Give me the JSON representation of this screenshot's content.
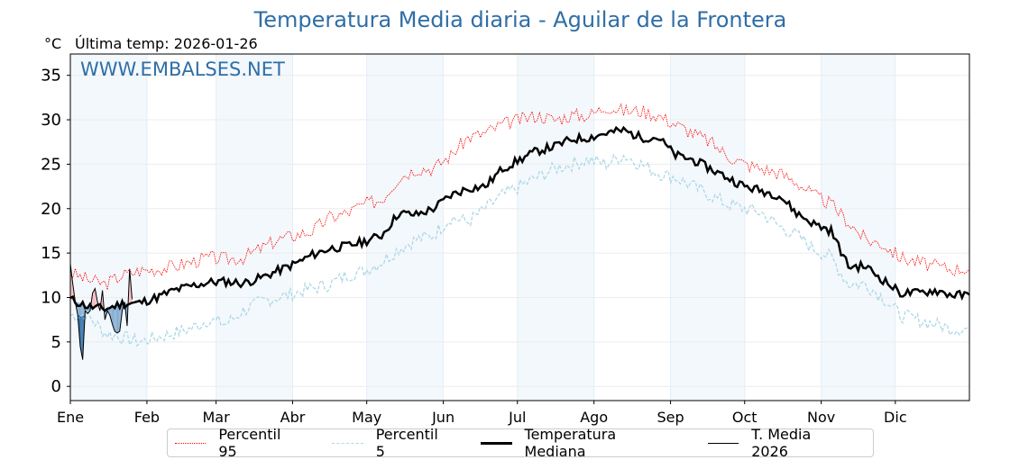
{
  "header": {
    "title": "Temperatura Media diaria - Aguilar de la Frontera",
    "unit": "°C",
    "last_temp": "Última temp: 2026-01-26",
    "watermark": "WWW.EMBALSES.NET"
  },
  "colors": {
    "title": "#2f6ea6",
    "p95": "#ff0000",
    "p5": "#add8e6",
    "median": "#000000",
    "current": "#000000",
    "above_fill": "#f4b8bf",
    "below_fill": "#7aa6cf",
    "below_p5_fill": "#2a6aa5",
    "band": "#f3f8fc"
  },
  "chart_data": {
    "type": "line",
    "title": "Temperatura Media diaria - Aguilar de la Frontera",
    "ylabel": "°C",
    "xlim": [
      0,
      364
    ],
    "ylim": [
      -1.6,
      37.4
    ],
    "yticks": [
      0,
      5,
      10,
      15,
      20,
      25,
      30,
      35
    ],
    "months": [
      {
        "label": "Ene",
        "day": 0
      },
      {
        "label": "Feb",
        "day": 31
      },
      {
        "label": "Mar",
        "day": 59
      },
      {
        "label": "Abr",
        "day": 90
      },
      {
        "label": "May",
        "day": 120
      },
      {
        "label": "Jun",
        "day": 151
      },
      {
        "label": "Jul",
        "day": 181
      },
      {
        "label": "Ago",
        "day": 212
      },
      {
        "label": "Sep",
        "day": 243
      },
      {
        "label": "Oct",
        "day": 273
      },
      {
        "label": "Nov",
        "day": 304
      },
      {
        "label": "Dic",
        "day": 334
      }
    ],
    "shaded_months": [
      0,
      2,
      4,
      6,
      8,
      10
    ],
    "x_step_days": 7,
    "series": [
      {
        "name": "Percentil 95",
        "style": "dotted",
        "values": [
          12.8,
          12.0,
          11.5,
          12.5,
          13.0,
          13.2,
          13.5,
          14.0,
          14.5,
          14.3,
          14.5,
          15.5,
          16.5,
          17.0,
          17.5,
          19.0,
          19.5,
          20.5,
          21.0,
          23.5,
          24.5,
          24.5,
          26.0,
          28.0,
          28.5,
          29.5,
          30.0,
          30.5,
          30.0,
          30.5,
          30.5,
          31.5,
          31.0,
          31.0,
          30.5,
          29.5,
          28.5,
          27.5,
          26.0,
          25.0,
          24.5,
          24.0,
          23.0,
          21.5,
          20.5,
          18.5,
          16.5,
          16.0,
          14.5,
          14.0,
          13.5,
          13.2,
          13.3
        ]
      },
      {
        "name": "Percentil 5",
        "style": "dashed",
        "values": [
          8.0,
          8.0,
          6.0,
          5.5,
          5.0,
          5.5,
          6.0,
          6.5,
          7.5,
          7.0,
          8.5,
          9.5,
          10.0,
          10.5,
          11.0,
          11.5,
          12.5,
          13.0,
          14.0,
          15.5,
          16.5,
          17.0,
          19.0,
          18.5,
          20.0,
          21.5,
          22.5,
          23.5,
          24.5,
          25.0,
          25.5,
          25.0,
          26.0,
          25.0,
          24.0,
          23.5,
          22.5,
          21.5,
          20.5,
          20.0,
          19.5,
          18.0,
          17.0,
          15.5,
          14.5,
          11.5,
          11.5,
          10.0,
          8.0,
          7.5,
          7.0,
          6.5,
          6.5
        ]
      },
      {
        "name": "Temperatura Mediana",
        "style": "thick",
        "values": [
          9.8,
          9.0,
          8.7,
          9.3,
          9.4,
          10.0,
          10.8,
          11.3,
          11.7,
          11.8,
          11.6,
          12.2,
          13.0,
          13.8,
          14.8,
          15.5,
          15.8,
          16.3,
          17.0,
          19.5,
          19.3,
          20.0,
          21.5,
          22.3,
          22.5,
          24.5,
          25.5,
          26.5,
          27.0,
          27.8,
          28.0,
          28.5,
          28.8,
          28.0,
          28.0,
          26.0,
          25.5,
          24.5,
          23.5,
          22.5,
          22.0,
          21.5,
          19.5,
          18.3,
          17.5,
          13.5,
          13.5,
          12.0,
          10.5,
          10.5,
          10.8,
          10.3,
          10.2
        ]
      },
      {
        "name": "T. Media 2026",
        "style": "thin",
        "daily": true,
        "values": [
          13.8,
          11.5,
          9.5,
          8.0,
          4.5,
          3.0,
          8.5,
          8.2,
          8.5,
          10.5,
          11.0,
          9.5,
          8.5,
          10.8,
          7.5,
          8.5,
          8.0,
          7.0,
          6.2,
          6.0,
          6.2,
          8.5,
          9.5,
          6.8,
          13.2,
          9.8
        ]
      }
    ]
  }
}
